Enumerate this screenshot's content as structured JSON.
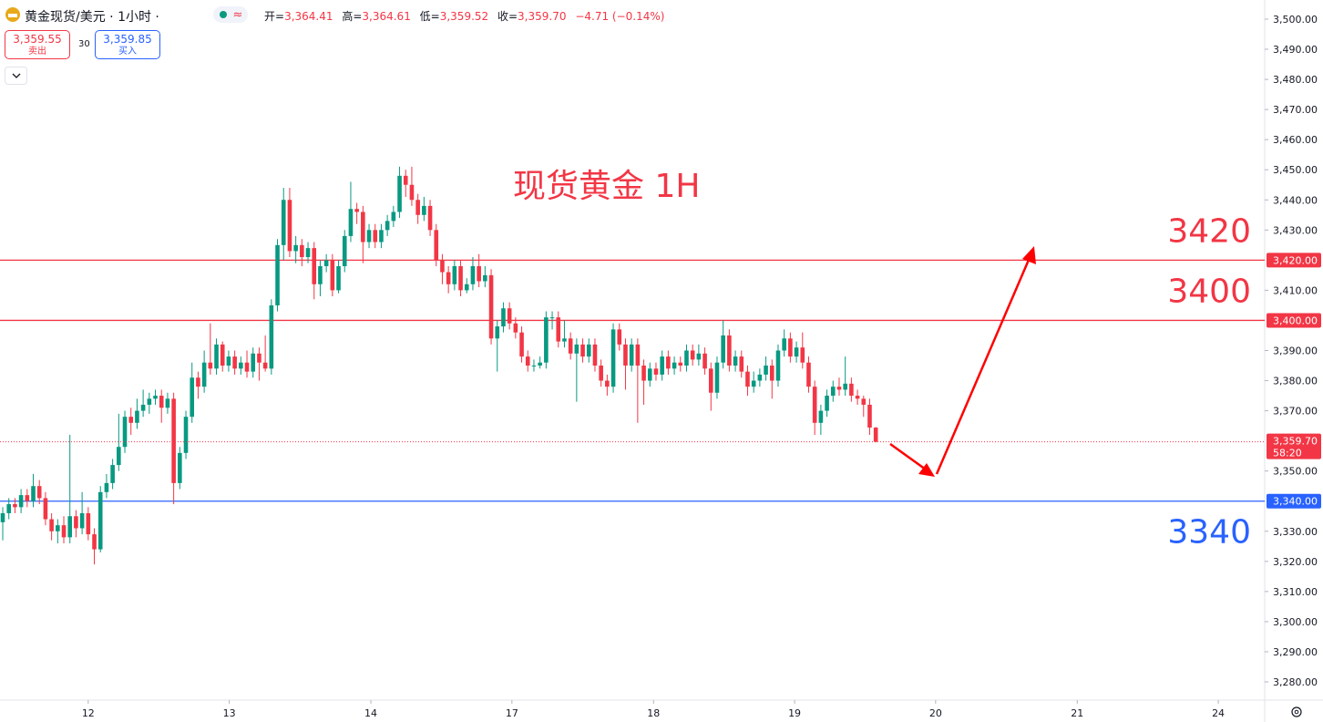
{
  "header": {
    "symbol": "黄金现货/美元 · 1小时 ·",
    "pill": "≈",
    "ohlc": [
      {
        "label": "开=",
        "value": "3,364.41"
      },
      {
        "label": "高=",
        "value": "3,364.61"
      },
      {
        "label": "低=",
        "value": "3,359.52"
      },
      {
        "label": "收=",
        "value": "3,359.70"
      },
      {
        "label": "",
        "value": "−4.71 (−0.14%)"
      }
    ],
    "sell": {
      "price": "3,359.55",
      "label": "卖出"
    },
    "spread": "30",
    "buy": {
      "price": "3,359.85",
      "label": "买入"
    }
  },
  "chart_data": {
    "type": "candlestick",
    "title": "现货黄金 1H",
    "title_color": "#f23645",
    "up_color": "#089981",
    "down_color": "#f23645",
    "xlim": [
      -0.45,
      206.7
    ],
    "xticks": [
      {
        "value": 14.0,
        "label": "12"
      },
      {
        "value": 37.1,
        "label": "13"
      },
      {
        "value": 60.3,
        "label": "14"
      },
      {
        "value": 83.4,
        "label": "17"
      },
      {
        "value": 106.6,
        "label": "18"
      },
      {
        "value": 129.7,
        "label": "19"
      },
      {
        "value": 152.8,
        "label": "20"
      },
      {
        "value": 176.0,
        "label": "21"
      },
      {
        "value": 199.1,
        "label": "24"
      }
    ],
    "ylim": [
      3273.95,
      3506.35
    ],
    "yticks": [
      {
        "value": 3280,
        "label": "3,280.00"
      },
      {
        "value": 3290,
        "label": "3,290.00"
      },
      {
        "value": 3300,
        "label": "3,300.00"
      },
      {
        "value": 3310,
        "label": "3,310.00"
      },
      {
        "value": 3320,
        "label": "3,320.00"
      },
      {
        "value": 3330,
        "label": "3,330.00"
      },
      {
        "value": 3350,
        "label": "3,350.00"
      },
      {
        "value": 3370,
        "label": "3,370.00"
      },
      {
        "value": 3380,
        "label": "3,380.00"
      },
      {
        "value": 3390,
        "label": "3,390.00"
      },
      {
        "value": 3410,
        "label": "3,410.00"
      },
      {
        "value": 3430,
        "label": "3,430.00"
      },
      {
        "value": 3440,
        "label": "3,440.00"
      },
      {
        "value": 3450,
        "label": "3,450.00"
      },
      {
        "value": 3460,
        "label": "3,460.00"
      },
      {
        "value": 3470,
        "label": "3,470.00"
      },
      {
        "value": 3480,
        "label": "3,480.00"
      },
      {
        "value": 3490,
        "label": "3,490.00"
      },
      {
        "value": 3500,
        "label": "3,500.00"
      }
    ],
    "hlines": [
      {
        "value": 3420,
        "label": "3,420.00",
        "annotation": "3420",
        "color": "#f23645",
        "annotation_side": "above"
      },
      {
        "value": 3400,
        "label": "3,400.00",
        "annotation": "3400",
        "color": "#f23645",
        "annotation_side": "above"
      },
      {
        "value": 3340,
        "label": "3,340.00",
        "annotation": "3340",
        "color": "#2962ff",
        "annotation_side": "below"
      }
    ],
    "last_price": {
      "value": 3359.7,
      "label": "3,359.70",
      "countdown": "58:20"
    },
    "open": [
      3333,
      3336,
      3339,
      3338,
      3342,
      3340,
      3345,
      3341,
      3334,
      3330,
      3332,
      3328,
      3335,
      3331,
      3336,
      3329,
      3324,
      3343,
      3346,
      3352,
      3358,
      3368,
      3366,
      3370,
      3372,
      3374,
      3375,
      3371,
      3374,
      3346,
      3356,
      3368,
      3381,
      3378,
      3386,
      3384,
      3392,
      3385,
      3388,
      3384,
      3386,
      3383,
      3389,
      3386,
      3384,
      3405,
      3425,
      3440,
      3423,
      3425,
      3421,
      3424,
      3412,
      3418,
      3420,
      3410,
      3418,
      3428,
      3437,
      3436,
      3426,
      3430,
      3426,
      3430,
      3433,
      3436,
      3448,
      3445,
      3440,
      3435,
      3438,
      3430,
      3420,
      3416,
      3412,
      3418,
      3410,
      3412,
      3418,
      3413,
      3415,
      3394,
      3398,
      3404,
      3399,
      3396,
      3388,
      3385,
      3385,
      3386,
      3401,
      3401,
      3393,
      3394,
      3389,
      3392,
      3388,
      3392,
      3385,
      3380,
      3378,
      3397,
      3392,
      3385,
      3392,
      3385,
      3380,
      3384,
      3382,
      3388,
      3384,
      3386,
      3385,
      3390,
      3387,
      3389,
      3384,
      3376,
      3386,
      3395,
      3385,
      3388,
      3383,
      3378,
      3380,
      3382,
      3385,
      3380,
      3390,
      3394,
      3388,
      3391,
      3386,
      3378,
      3366,
      3370,
      3375,
      3378,
      3377,
      3379,
      3375,
      3374,
      3372,
      3364.41
    ],
    "high": [
      3338,
      3341,
      3341,
      3344,
      3344,
      3349,
      3347,
      3343,
      3336,
      3334,
      3335,
      3362,
      3337,
      3343,
      3338,
      3331,
      3345,
      3349,
      3354,
      3369,
      3370,
      3371,
      3374,
      3377,
      3376,
      3377,
      3377,
      3376,
      3376,
      3358,
      3370,
      3386,
      3383,
      3390,
      3399,
      3394,
      3393,
      3390,
      3390,
      3388,
      3390,
      3391,
      3391,
      3395,
      3407,
      3427,
      3444,
      3444,
      3428,
      3427,
      3426,
      3426,
      3420,
      3422,
      3422,
      3420,
      3430,
      3446,
      3439,
      3438,
      3432,
      3432,
      3432,
      3435,
      3438,
      3451,
      3450,
      3451,
      3442,
      3441,
      3440,
      3432,
      3422,
      3418,
      3420,
      3420,
      3414,
      3421,
      3422,
      3418,
      3417,
      3400,
      3406,
      3406,
      3401,
      3398,
      3390,
      3387,
      3388,
      3403,
      3403,
      3403,
      3400,
      3396,
      3394,
      3394,
      3394,
      3394,
      3387,
      3382,
      3399,
      3399,
      3394,
      3394,
      3394,
      3387,
      3386,
      3386,
      3390,
      3390,
      3388,
      3388,
      3392,
      3392,
      3392,
      3391,
      3386,
      3388,
      3400,
      3397,
      3390,
      3390,
      3385,
      3383,
      3384,
      3388,
      3387,
      3392,
      3397,
      3396,
      3393,
      3396,
      3388,
      3380,
      3372,
      3377,
      3380,
      3381,
      3388,
      3381,
      3377,
      3375,
      3374,
      3364.61
    ],
    "low": [
      3327,
      3334,
      3336,
      3336,
      3338,
      3338,
      3339,
      3332,
      3327,
      3326,
      3326,
      3326,
      3328,
      3329,
      3327,
      3319,
      3323,
      3341,
      3344,
      3350,
      3356,
      3362,
      3364,
      3368,
      3369,
      3372,
      3366,
      3369,
      3339,
      3344,
      3354,
      3366,
      3374,
      3376,
      3382,
      3382,
      3383,
      3383,
      3382,
      3382,
      3381,
      3381,
      3380,
      3383,
      3382,
      3403,
      3420,
      3421,
      3419,
      3418,
      3419,
      3407,
      3408,
      3416,
      3408,
      3409,
      3416,
      3426,
      3432,
      3419,
      3424,
      3424,
      3424,
      3428,
      3431,
      3434,
      3441,
      3438,
      3432,
      3433,
      3428,
      3418,
      3412,
      3409,
      3410,
      3408,
      3409,
      3410,
      3411,
      3411,
      3392,
      3383,
      3396,
      3397,
      3394,
      3386,
      3383,
      3383,
      3384,
      3384,
      3397,
      3391,
      3391,
      3387,
      3373,
      3386,
      3386,
      3383,
      3378,
      3375,
      3376,
      3390,
      3377,
      3383,
      3366,
      3372,
      3378,
      3380,
      3380,
      3382,
      3382,
      3383,
      3383,
      3385,
      3385,
      3382,
      3370,
      3374,
      3384,
      3383,
      3383,
      3381,
      3375,
      3376,
      3378,
      3380,
      3374,
      3378,
      3388,
      3386,
      3386,
      3384,
      3376,
      3362,
      3362,
      3368,
      3373,
      3375,
      3375,
      3373,
      3372,
      3368,
      3362,
      3359.52
    ],
    "close": [
      3336,
      3339,
      3338,
      3342,
      3340,
      3345,
      3341,
      3334,
      3330,
      3332,
      3328,
      3335,
      3331,
      3336,
      3329,
      3324,
      3343,
      3346,
      3352,
      3358,
      3368,
      3366,
      3370,
      3372,
      3374,
      3375,
      3371,
      3374,
      3346,
      3356,
      3368,
      3381,
      3378,
      3386,
      3384,
      3392,
      3385,
      3388,
      3384,
      3386,
      3383,
      3389,
      3386,
      3384,
      3405,
      3425,
      3440,
      3423,
      3425,
      3421,
      3424,
      3412,
      3418,
      3420,
      3410,
      3418,
      3428,
      3437,
      3436,
      3426,
      3430,
      3426,
      3430,
      3433,
      3436,
      3448,
      3445,
      3440,
      3435,
      3438,
      3430,
      3420,
      3416,
      3412,
      3418,
      3410,
      3412,
      3418,
      3413,
      3415,
      3394,
      3398,
      3404,
      3399,
      3396,
      3388,
      3385,
      3385,
      3386,
      3401,
      3401,
      3393,
      3394,
      3389,
      3392,
      3388,
      3392,
      3385,
      3380,
      3378,
      3397,
      3392,
      3385,
      3392,
      3385,
      3380,
      3384,
      3382,
      3388,
      3384,
      3386,
      3385,
      3390,
      3387,
      3389,
      3384,
      3376,
      3386,
      3395,
      3385,
      3388,
      3383,
      3378,
      3380,
      3382,
      3385,
      3380,
      3390,
      3394,
      3388,
      3391,
      3386,
      3378,
      3366,
      3370,
      3375,
      3378,
      3377,
      3379,
      3375,
      3374,
      3372,
      3364.41,
      3359.7
    ]
  }
}
